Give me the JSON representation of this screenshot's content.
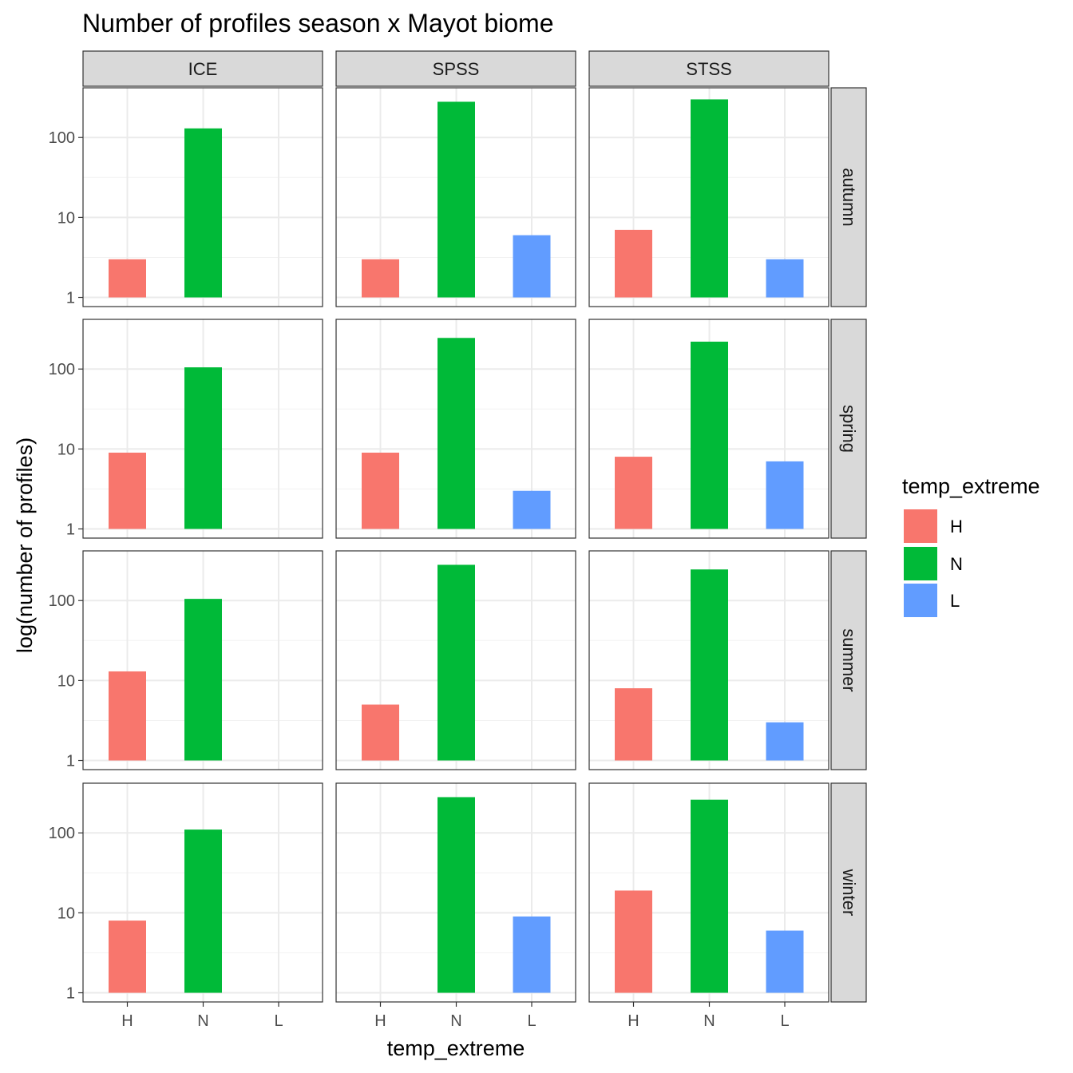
{
  "chart_data": {
    "type": "bar",
    "title": "Number of profiles season x Mayot biome",
    "xlabel": "temp_extreme",
    "ylabel": "log(number of profiles)",
    "y_scale": "log10",
    "y_ticks": [
      1,
      10,
      100
    ],
    "y_tick_labels": [
      "1",
      "10",
      "100"
    ],
    "categories": [
      "H",
      "N",
      "L"
    ],
    "column_facets": [
      "ICE",
      "SPSS",
      "STSS"
    ],
    "row_facets": [
      "autumn",
      "spring",
      "summer",
      "winter"
    ],
    "grid": true,
    "legend": {
      "title": "temp_extreme",
      "position": "right",
      "entries": [
        {
          "label": "H",
          "color": "#F8766D"
        },
        {
          "label": "N",
          "color": "#00BA38"
        },
        {
          "label": "L",
          "color": "#619CFF"
        }
      ]
    },
    "panels": [
      {
        "column": "ICE",
        "row": "autumn",
        "values": [
          3,
          130,
          null
        ]
      },
      {
        "column": "SPSS",
        "row": "autumn",
        "values": [
          3,
          280,
          6
        ]
      },
      {
        "column": "STSS",
        "row": "autumn",
        "values": [
          7,
          300,
          3
        ]
      },
      {
        "column": "ICE",
        "row": "spring",
        "values": [
          9,
          105,
          null
        ]
      },
      {
        "column": "SPSS",
        "row": "spring",
        "values": [
          9,
          245,
          3
        ]
      },
      {
        "column": "STSS",
        "row": "spring",
        "values": [
          8,
          220,
          7
        ]
      },
      {
        "column": "ICE",
        "row": "summer",
        "values": [
          13,
          105,
          null
        ]
      },
      {
        "column": "SPSS",
        "row": "summer",
        "values": [
          5,
          280,
          null
        ]
      },
      {
        "column": "STSS",
        "row": "summer",
        "values": [
          8,
          245,
          3
        ]
      },
      {
        "column": "ICE",
        "row": "winter",
        "values": [
          8,
          110,
          null
        ]
      },
      {
        "column": "SPSS",
        "row": "winter",
        "values": [
          null,
          280,
          9
        ]
      },
      {
        "column": "STSS",
        "row": "winter",
        "values": [
          19,
          260,
          6
        ]
      }
    ]
  }
}
